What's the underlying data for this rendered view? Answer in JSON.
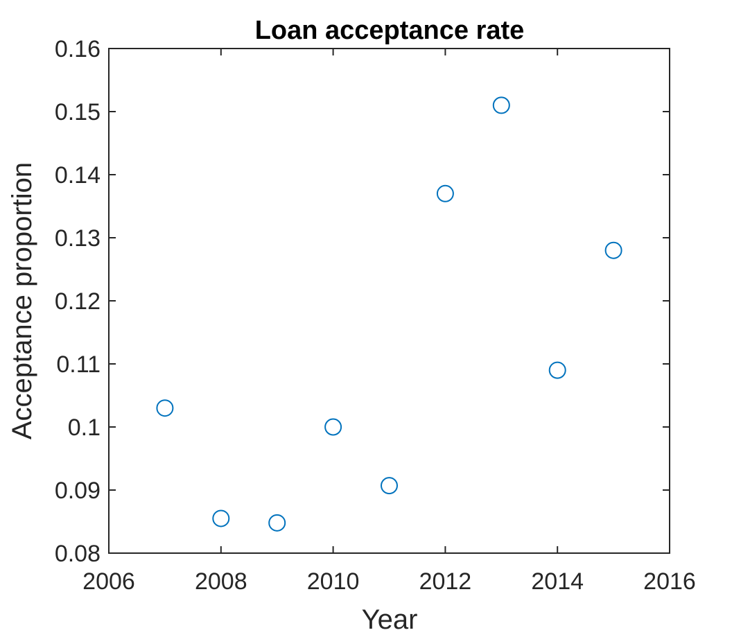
{
  "chart_data": {
    "type": "scatter",
    "title": "Loan acceptance rate",
    "xlabel": "Year",
    "ylabel": "Acceptance proportion",
    "xlim": [
      2006,
      2016
    ],
    "ylim": [
      0.08,
      0.16
    ],
    "xticks": [
      2006,
      2008,
      2010,
      2012,
      2014,
      2016
    ],
    "xtick_labels": [
      "2006",
      "2008",
      "2010",
      "2012",
      "2014",
      "2016"
    ],
    "yticks": [
      0.08,
      0.09,
      0.1,
      0.11,
      0.12,
      0.13,
      0.14,
      0.15,
      0.16
    ],
    "ytick_labels": [
      "0.08",
      "0.09",
      "0.1",
      "0.11",
      "0.12",
      "0.13",
      "0.14",
      "0.15",
      "0.16"
    ],
    "grid": false,
    "marker": "open-circle",
    "series": [
      {
        "x": [
          2007,
          2008,
          2009,
          2010,
          2011,
          2012,
          2013,
          2014,
          2015
        ],
        "y": [
          0.103,
          0.0855,
          0.0848,
          0.1,
          0.0907,
          0.137,
          0.151,
          0.109,
          0.128
        ]
      }
    ],
    "colors": {
      "marker": "#0072BD",
      "axes": "#262626",
      "background": "#ffffff"
    }
  }
}
